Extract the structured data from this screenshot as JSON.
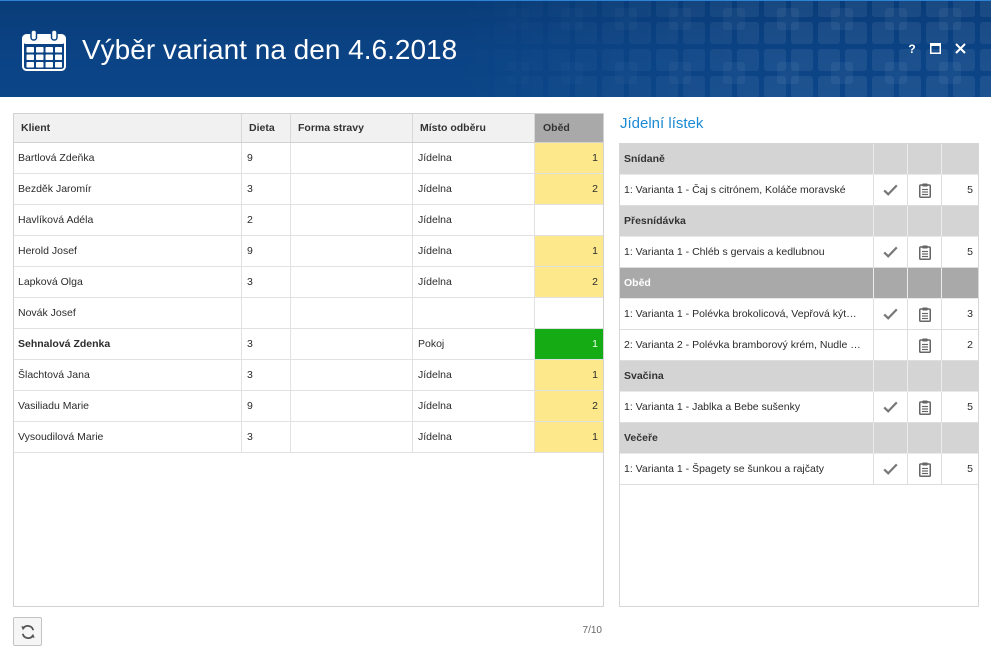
{
  "window": {
    "title": "Výběr variant na den 4.6.2018",
    "title_icon": "calendar-icon",
    "help_label": "?",
    "maximize_icon": "maximize-icon",
    "close_icon": "close-icon"
  },
  "clients_table": {
    "columns": {
      "client": "Klient",
      "diet": "Dieta",
      "form": "Forma stravy",
      "place": "Místo odběru",
      "lunch": "Oběd"
    },
    "rows": [
      {
        "client": "Bartlová Zdeňka",
        "diet": "9",
        "form": "",
        "place": "Jídelna",
        "lunch": "1",
        "lunch_color": "#fde88b",
        "bold": false
      },
      {
        "client": "Bezděk Jaromír",
        "diet": "3",
        "form": "",
        "place": "Jídelna",
        "lunch": "2",
        "lunch_color": "#fde88b",
        "bold": false
      },
      {
        "client": "Havlíková Adéla",
        "diet": "2",
        "form": "",
        "place": "Jídelna",
        "lunch": "",
        "lunch_color": "#ffffff",
        "bold": false
      },
      {
        "client": "Herold Josef",
        "diet": "9",
        "form": "",
        "place": "Jídelna",
        "lunch": "1",
        "lunch_color": "#fde88b",
        "bold": false
      },
      {
        "client": "Lapková Olga",
        "diet": "3",
        "form": "",
        "place": "Jídelna",
        "lunch": "2",
        "lunch_color": "#fde88b",
        "bold": false
      },
      {
        "client": "Novák Josef",
        "diet": "",
        "form": "",
        "place": "",
        "lunch": "",
        "lunch_color": "#ffffff",
        "bold": false
      },
      {
        "client": "Sehnalová Zdenka",
        "diet": "3",
        "form": "",
        "place": "Pokoj",
        "lunch": "1",
        "lunch_color": "#14ab14",
        "bold": true
      },
      {
        "client": "Šlachtová Jana",
        "diet": "3",
        "form": "",
        "place": "Jídelna",
        "lunch": "1",
        "lunch_color": "#fde88b",
        "bold": false
      },
      {
        "client": "Vasiliadu Marie",
        "diet": "9",
        "form": "",
        "place": "Jídelna",
        "lunch": "2",
        "lunch_color": "#fde88b",
        "bold": false
      },
      {
        "client": "Vysoudilová Marie",
        "diet": "3",
        "form": "",
        "place": "Jídelna",
        "lunch": "1",
        "lunch_color": "#fde88b",
        "bold": false
      }
    ]
  },
  "footer": {
    "refresh_icon": "refresh-icon",
    "pager": "7/10"
  },
  "menu": {
    "title": "Jídelní lístek",
    "check_icon": "check-icon",
    "clipboard_icon": "clipboard-icon",
    "groups": [
      {
        "name": "Snídaně",
        "active": false,
        "items": [
          {
            "label": "1: Varianta 1 - Čaj s citrónem, Koláče moravské",
            "checked": true,
            "count": "5"
          }
        ]
      },
      {
        "name": "Přesnídávka",
        "active": false,
        "items": [
          {
            "label": "1: Varianta 1 - Chléb s gervais a kedlubnou",
            "checked": true,
            "count": "5"
          }
        ]
      },
      {
        "name": "Oběd",
        "active": true,
        "items": [
          {
            "label": "1: Varianta 1 - Polévka brokolicová, Vepřová kýt…",
            "checked": true,
            "count": "3"
          },
          {
            "label": "2: Varianta 2 - Polévka bramborový krém, Nudle …",
            "checked": false,
            "count": "2"
          }
        ]
      },
      {
        "name": "Svačina",
        "active": false,
        "items": [
          {
            "label": "1: Varianta 1 - Jablka a Bebe sušenky",
            "checked": true,
            "count": "5"
          }
        ]
      },
      {
        "name": "Večeře",
        "active": false,
        "items": [
          {
            "label": "1: Varianta 1 - Špagety se šunkou a rajčaty",
            "checked": true,
            "count": "5"
          }
        ]
      }
    ]
  },
  "colors": {
    "header": "#0b4385",
    "accent": "#1b8ad4",
    "group_header": "#d4d4d4",
    "group_header_active": "#a9a9a9",
    "column_header_active": "#a9a9a9"
  }
}
